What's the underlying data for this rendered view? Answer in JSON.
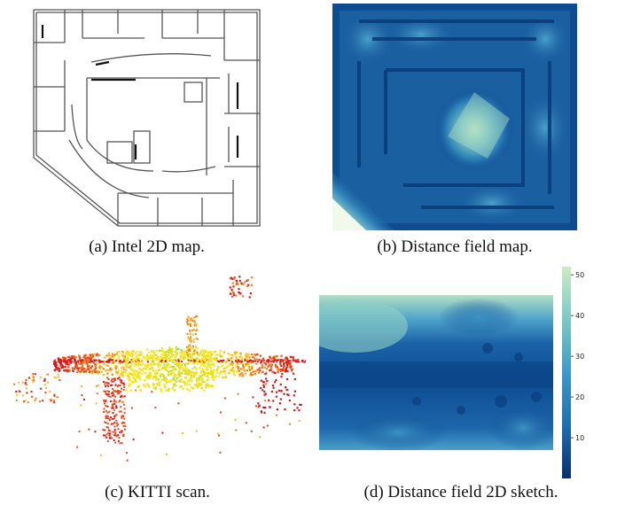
{
  "figure": {
    "panels": [
      {
        "id": "a",
        "caption": "(a) Intel 2D map."
      },
      {
        "id": "b",
        "caption": "(b) Distance field map."
      },
      {
        "id": "c",
        "caption": "(c) KITTI scan."
      },
      {
        "id": "d",
        "caption": "(d) Distance field 2D sketch."
      }
    ],
    "colorbar": {
      "ticks": [
        "10",
        "20",
        "30",
        "40",
        "50"
      ],
      "min": 0,
      "max": 52,
      "low_color": "#08306b",
      "high_color": "#ccebc5"
    }
  }
}
